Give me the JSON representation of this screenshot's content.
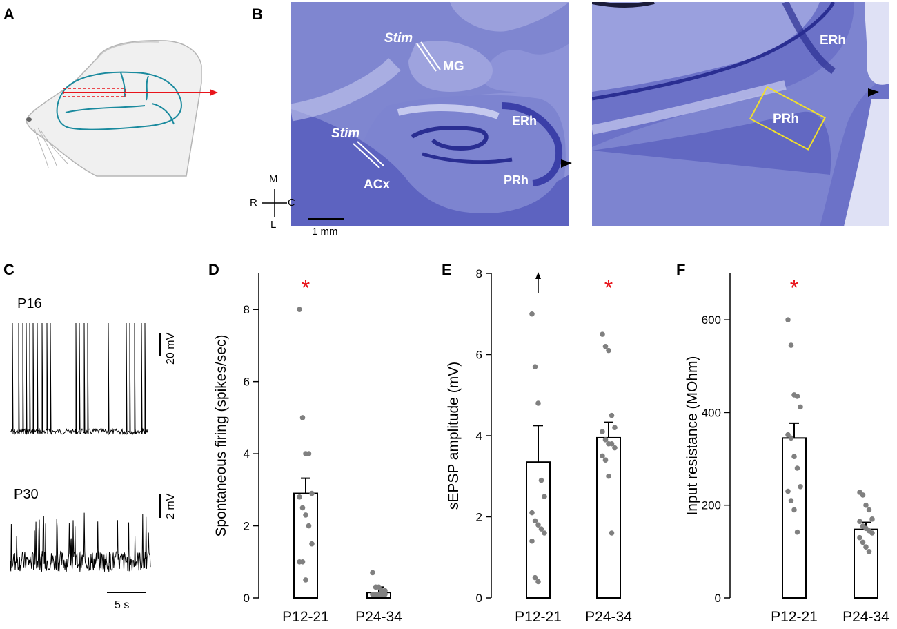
{
  "panels": {
    "A": "A",
    "B": "B",
    "C": "C",
    "D": "D",
    "E": "E",
    "F": "F"
  },
  "panelB": {
    "regions": [
      "Stim",
      "MG",
      "Stim",
      "ACx",
      "ERh",
      "PRh"
    ],
    "orientation": {
      "M": "M",
      "R": "R",
      "C": "C",
      "L": "L"
    },
    "scalebar": "1 mm",
    "zoom_regions": [
      "ERh",
      "PRh"
    ]
  },
  "panelC": {
    "trace1_label": "P16",
    "trace1_scale": "20 mV",
    "trace2_label": "P30",
    "trace2_scale": "2 mV",
    "time_scale": "5 s"
  },
  "colors": {
    "stain_dark": "#3b3fa8",
    "stain_light": "#aeb3e6",
    "significance": "#e8141b",
    "dots": "#808080",
    "highlight_box": "#f2e02a",
    "arrow": "#e8141b",
    "brain_outline": "#1a8a9e"
  },
  "chart_data": [
    {
      "panel": "D",
      "type": "bar",
      "categories": [
        "P12-21",
        "P24-34"
      ],
      "values": [
        2.9,
        0.15
      ],
      "errors": [
        0.42,
        0.15
      ],
      "ylabel": "Spontaneous firing (spikes/sec)",
      "ylim": [
        0,
        9
      ],
      "yticks": [
        "0",
        "2",
        "4",
        "6",
        "8"
      ],
      "significance": [
        "*",
        ""
      ],
      "points": [
        [
          8.0,
          5.0,
          4.0,
          4.0,
          2.9,
          2.8,
          2.5,
          2.3,
          2.0,
          1.5,
          1.0,
          1.0,
          0.5
        ],
        [
          0.7,
          0.3,
          0.3,
          0.2,
          0.2,
          0.1,
          0.1,
          0.1,
          0.1,
          0.1,
          0.1,
          0.1,
          0.1,
          0.1
        ]
      ]
    },
    {
      "panel": "E",
      "type": "bar",
      "categories": [
        "P12-21",
        "P24-34"
      ],
      "values": [
        3.35,
        3.95
      ],
      "errors": [
        0.9,
        0.38
      ],
      "ylabel": "sEPSP amplitude (mV)",
      "ylim": [
        0,
        8
      ],
      "yticks": [
        "0",
        "2",
        "4",
        "6",
        "8"
      ],
      "significance": [
        "",
        "*"
      ],
      "offscale_arrow": [
        true,
        false
      ],
      "points": [
        [
          7.0,
          5.7,
          4.8,
          2.9,
          2.5,
          2.1,
          1.9,
          1.8,
          1.7,
          1.6,
          1.4,
          0.5,
          0.4
        ],
        [
          6.5,
          6.2,
          6.1,
          4.5,
          4.2,
          4.1,
          3.9,
          3.8,
          3.8,
          3.7,
          3.5,
          3.4,
          3.0,
          1.6
        ]
      ]
    },
    {
      "panel": "F",
      "type": "bar",
      "categories": [
        "P12-21",
        "P24-34"
      ],
      "values": [
        345,
        148
      ],
      "errors": [
        32,
        15
      ],
      "ylabel": "Input resistance (MOhm)",
      "ylim": [
        0,
        700
      ],
      "yticks": [
        "0",
        "200",
        "400",
        "600"
      ],
      "significance": [
        "*",
        ""
      ],
      "points": [
        [
          600,
          545,
          438,
          435,
          412,
          352,
          345,
          305,
          280,
          240,
          230,
          210,
          190,
          142
        ],
        [
          228,
          222,
          200,
          190,
          170,
          165,
          155,
          150,
          145,
          140,
          130,
          120,
          110,
          100
        ]
      ]
    }
  ]
}
